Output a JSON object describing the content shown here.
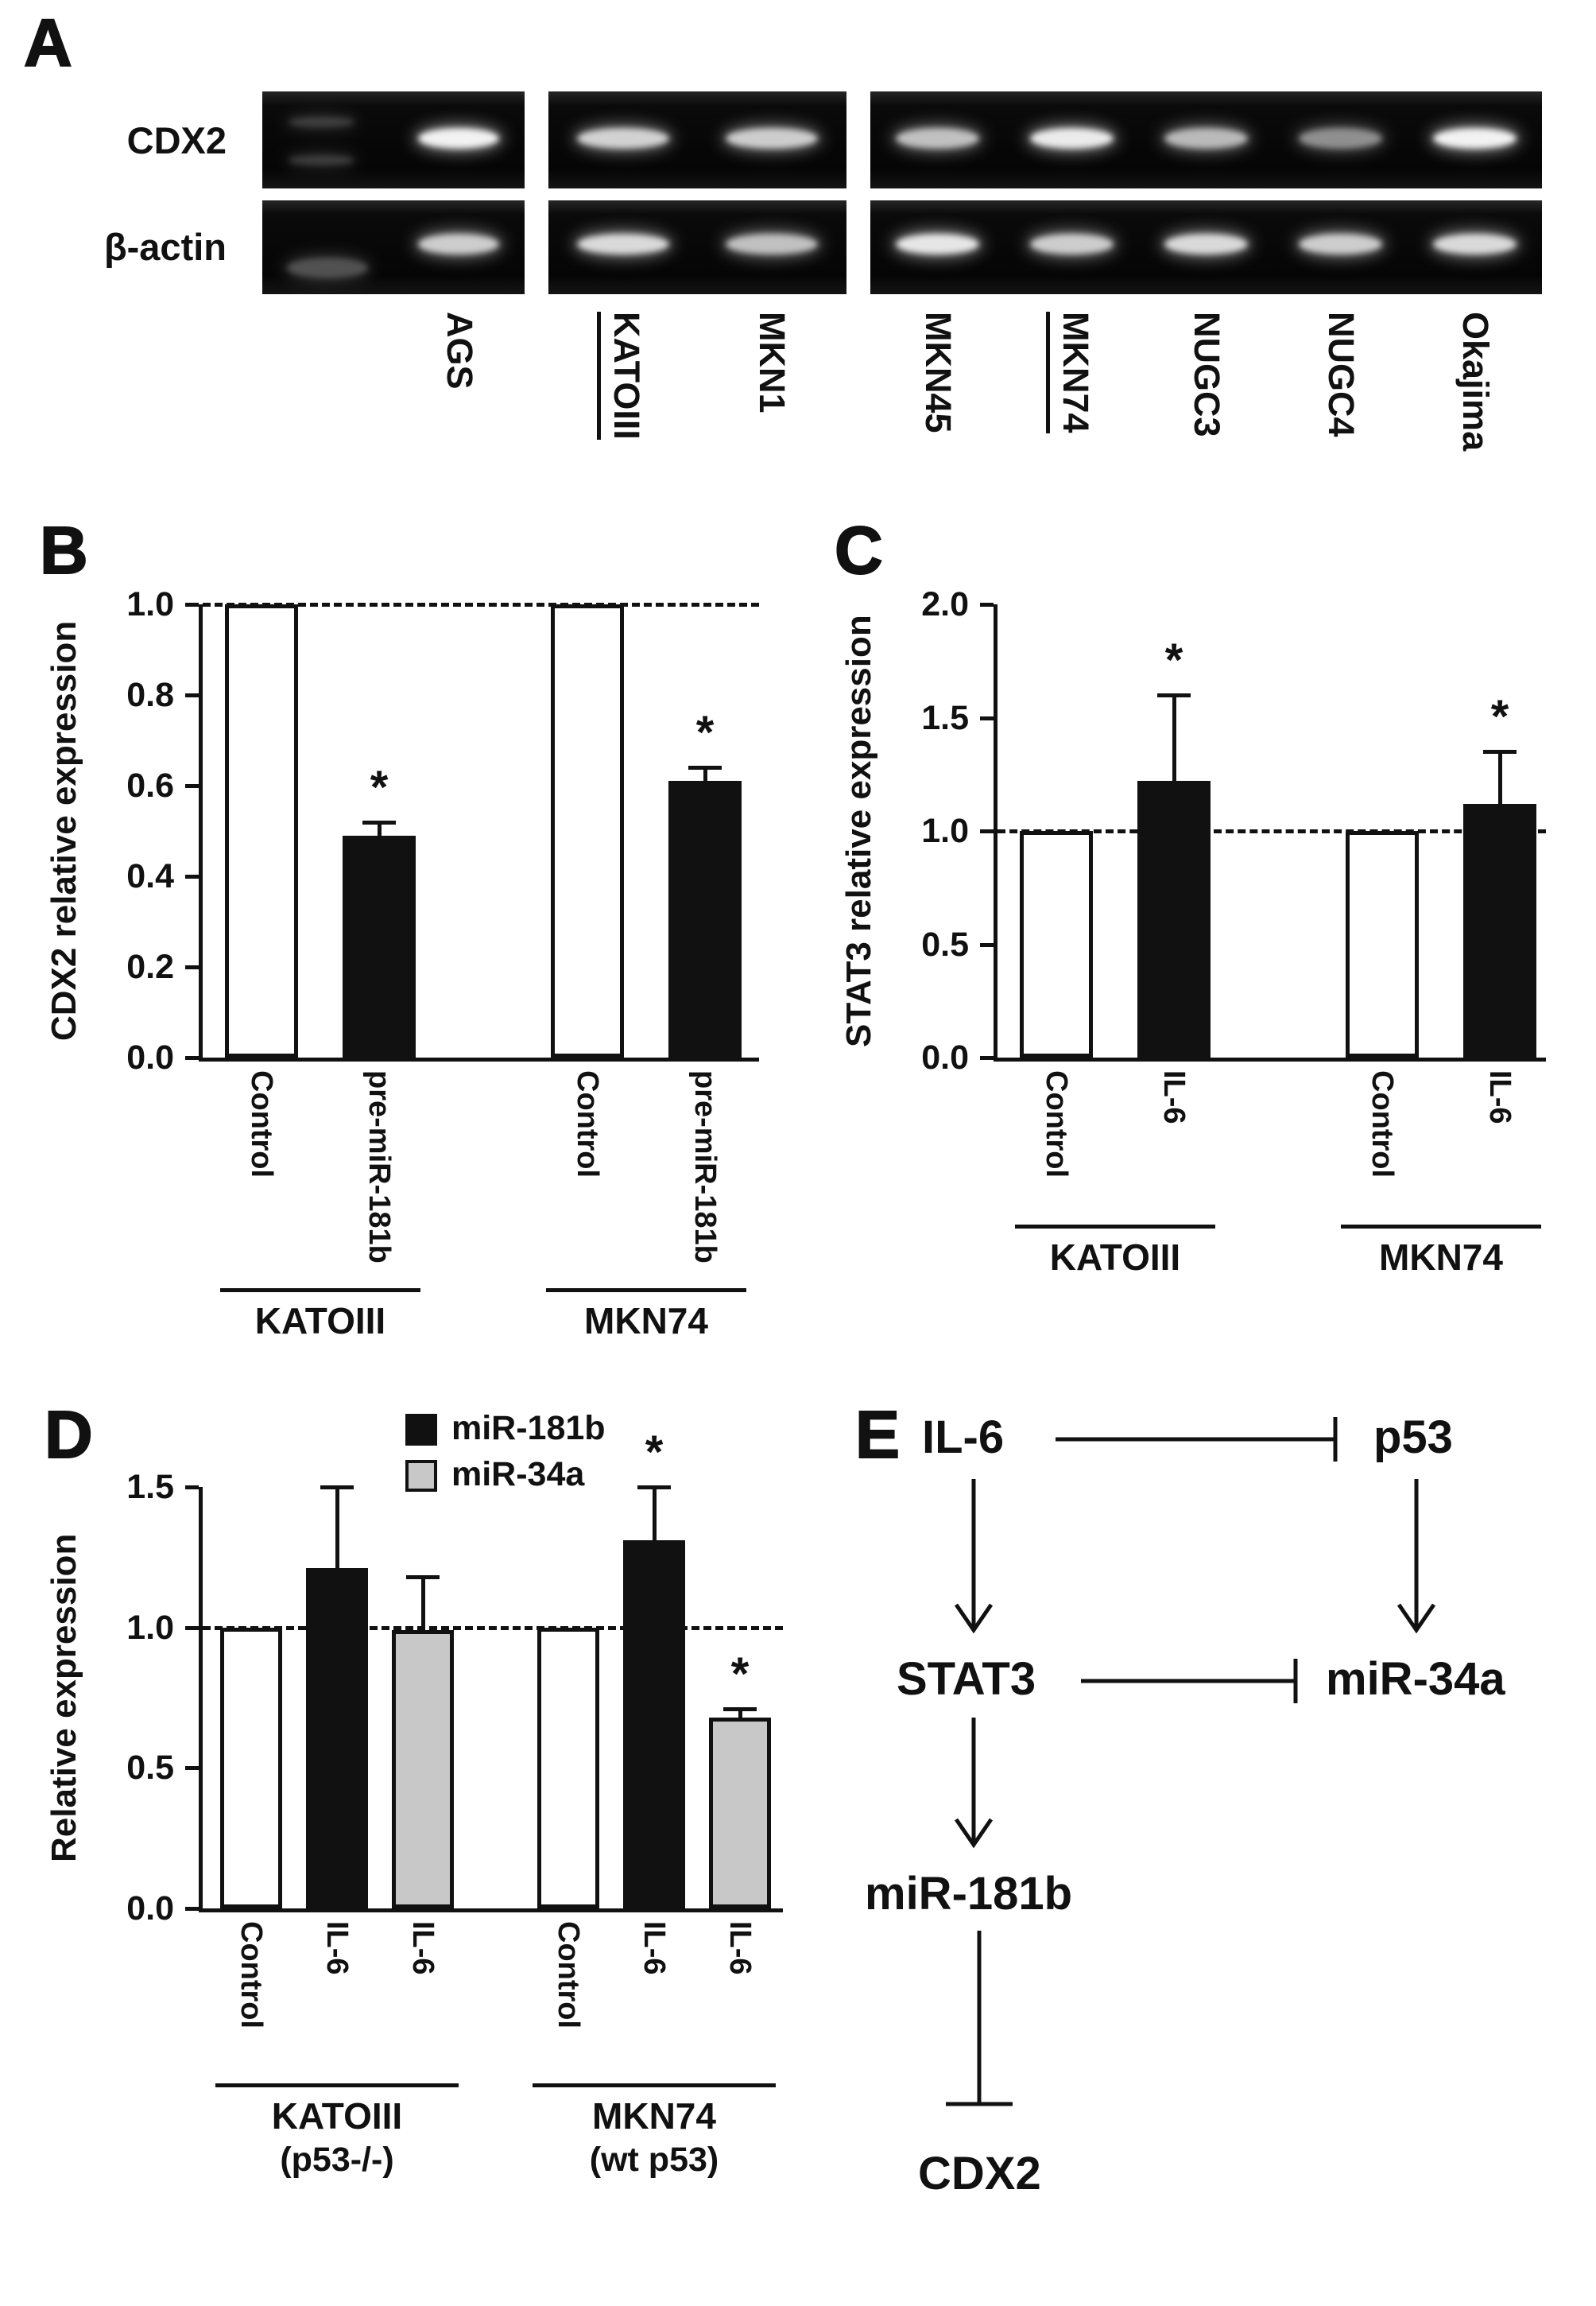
{
  "colors": {
    "ink": "#111111",
    "background": "#ffffff",
    "gel_background": "#0a0a0a",
    "band": "#ffffff",
    "black_bar": "#111111",
    "white_bar": "#ffffff",
    "gray_bar": "#c8c8c8"
  },
  "panel_a": {
    "label": "A",
    "row_labels": [
      "CDX2",
      "β-actin"
    ],
    "blocks": [
      {
        "lanes": [
          {
            "name": "",
            "underline": false,
            "marker": true,
            "cdx2": 0.22,
            "actin": 0.3
          },
          {
            "name": "AGS",
            "underline": false,
            "marker": false,
            "cdx2": 0.95,
            "actin": 0.8
          }
        ]
      },
      {
        "lanes": [
          {
            "name": "KATOIII",
            "underline": true,
            "marker": false,
            "cdx2": 0.82,
            "actin": 0.85
          },
          {
            "name": "MKN1",
            "underline": false,
            "marker": false,
            "cdx2": 0.8,
            "actin": 0.75
          }
        ]
      },
      {
        "lanes": [
          {
            "name": "MKN45",
            "underline": false,
            "marker": false,
            "cdx2": 0.75,
            "actin": 0.9
          },
          {
            "name": "MKN74",
            "underline": true,
            "marker": false,
            "cdx2": 0.92,
            "actin": 0.8
          },
          {
            "name": "NUGC3",
            "underline": false,
            "marker": false,
            "cdx2": 0.72,
            "actin": 0.85
          },
          {
            "name": "NUGC4",
            "underline": false,
            "marker": false,
            "cdx2": 0.55,
            "actin": 0.8
          },
          {
            "name": "Okajima",
            "underline": false,
            "marker": false,
            "cdx2": 0.95,
            "actin": 0.85
          }
        ]
      }
    ]
  },
  "chart_data": [
    {
      "id": "B",
      "panel_label": "B",
      "type": "bar",
      "title": "",
      "xlabel": "",
      "ylabel": "CDX2 relative expression",
      "ylim": [
        0,
        1.0
      ],
      "yticks": [
        0,
        0.2,
        0.4,
        0.6,
        0.8,
        1.0
      ],
      "grid": false,
      "dashed_line_y": 1.0,
      "groups": [
        {
          "label": "KATOIII",
          "sublabel": "",
          "bars": [
            {
              "label": "Control",
              "value": 1.0,
              "error": 0,
              "fill": "#ffffff",
              "sig": ""
            },
            {
              "label": "pre-miR-181b",
              "value": 0.49,
              "error": 0.03,
              "fill": "#111111",
              "sig": "*"
            }
          ]
        },
        {
          "label": "MKN74",
          "sublabel": "",
          "bars": [
            {
              "label": "Control",
              "value": 1.0,
              "error": 0,
              "fill": "#ffffff",
              "sig": ""
            },
            {
              "label": "pre-miR-181b",
              "value": 0.61,
              "error": 0.03,
              "fill": "#111111",
              "sig": "*"
            }
          ]
        }
      ]
    },
    {
      "id": "C",
      "panel_label": "C",
      "type": "bar",
      "title": "",
      "xlabel": "",
      "ylabel": "STAT3 relative expression",
      "ylim": [
        0,
        2.0
      ],
      "yticks": [
        0,
        0.5,
        1.0,
        1.5,
        2.0
      ],
      "grid": false,
      "dashed_line_y": 1.0,
      "groups": [
        {
          "label": "KATOIII",
          "sublabel": "",
          "bars": [
            {
              "label": "Control",
              "value": 1.0,
              "error": 0,
              "fill": "#ffffff",
              "sig": ""
            },
            {
              "label": "IL-6",
              "value": 1.22,
              "error": 0.38,
              "fill": "#111111",
              "sig": "*"
            }
          ]
        },
        {
          "label": "MKN74",
          "sublabel": "",
          "bars": [
            {
              "label": "Control",
              "value": 1.0,
              "error": 0,
              "fill": "#ffffff",
              "sig": ""
            },
            {
              "label": "IL-6",
              "value": 1.12,
              "error": 0.23,
              "fill": "#111111",
              "sig": "*"
            }
          ]
        }
      ]
    },
    {
      "id": "D",
      "panel_label": "D",
      "type": "bar",
      "title": "",
      "xlabel": "",
      "ylabel": "Relative expression",
      "ylim": [
        0,
        1.5
      ],
      "yticks": [
        0,
        0.5,
        1.0,
        1.5
      ],
      "grid": false,
      "dashed_line_y": 1.0,
      "legend": [
        {
          "label": "miR-181b",
          "fill": "#111111"
        },
        {
          "label": "miR-34a",
          "fill": "#c8c8c8"
        }
      ],
      "groups": [
        {
          "label": "KATOIII",
          "sublabel": "(p53-/-)",
          "bars": [
            {
              "label": "Control",
              "value": 1.0,
              "error": 0,
              "fill": "#ffffff",
              "sig": ""
            },
            {
              "label": "IL-6",
              "value": 1.21,
              "error": 0.29,
              "fill": "#111111",
              "sig": ""
            },
            {
              "label": "IL-6",
              "value": 0.99,
              "error": 0.19,
              "fill": "#c8c8c8",
              "sig": ""
            }
          ]
        },
        {
          "label": "MKN74",
          "sublabel": "(wt p53)",
          "bars": [
            {
              "label": "Control",
              "value": 1.0,
              "error": 0,
              "fill": "#ffffff",
              "sig": ""
            },
            {
              "label": "IL-6",
              "value": 1.31,
              "error": 0.19,
              "fill": "#111111",
              "sig": "*"
            },
            {
              "label": "IL-6",
              "value": 0.68,
              "error": 0.03,
              "fill": "#c8c8c8",
              "sig": "*"
            }
          ]
        }
      ]
    }
  ],
  "panel_e": {
    "label": "E",
    "nodes": {
      "il6": "IL-6",
      "p53": "p53",
      "stat3": "STAT3",
      "mir34a": "miR-34a",
      "mir181b": "miR-181b",
      "cdx2": "CDX2"
    },
    "edges": [
      {
        "from": "IL-6",
        "to": "p53",
        "type": "inhibition"
      },
      {
        "from": "IL-6",
        "to": "STAT3",
        "type": "activation"
      },
      {
        "from": "p53",
        "to": "miR-34a",
        "type": "activation"
      },
      {
        "from": "STAT3",
        "to": "miR-34a",
        "type": "inhibition"
      },
      {
        "from": "STAT3",
        "to": "miR-181b",
        "type": "activation"
      },
      {
        "from": "miR-181b",
        "to": "CDX2",
        "type": "inhibition"
      }
    ]
  }
}
